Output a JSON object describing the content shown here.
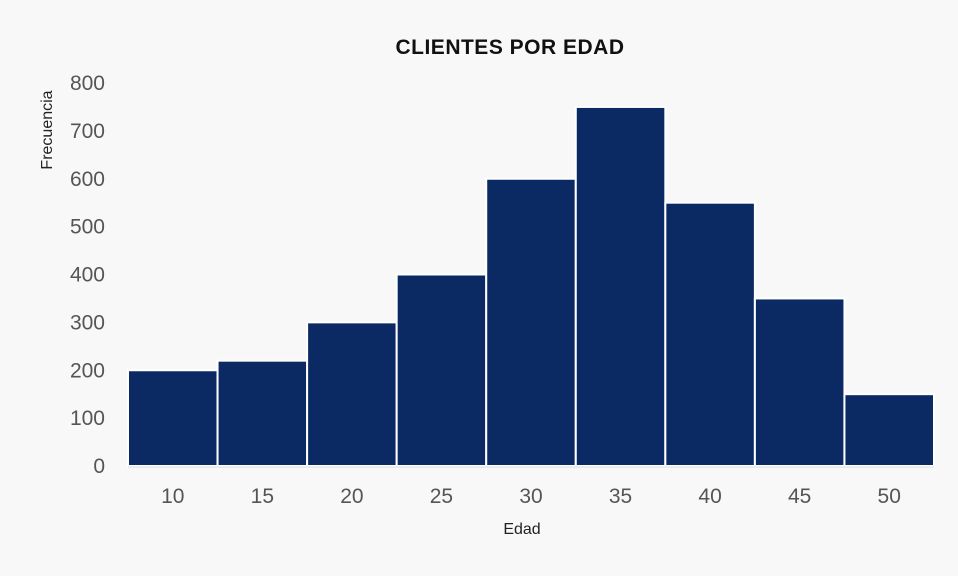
{
  "chart_data": {
    "type": "bar",
    "title": "CLIENTES POR EDAD",
    "xlabel": "Edad",
    "ylabel": "Frecuencia",
    "categories": [
      "10",
      "15",
      "20",
      "25",
      "30",
      "35",
      "40",
      "45",
      "50"
    ],
    "values": [
      200,
      220,
      300,
      400,
      600,
      750,
      550,
      350,
      150
    ],
    "ylim": [
      0,
      800
    ],
    "yticks": [
      "0",
      "100",
      "200",
      "300",
      "400",
      "500",
      "600",
      "700",
      "800"
    ],
    "grid": false,
    "legend": "none",
    "bar_color": "#0b2a63",
    "bar_edge_color": "#ffffff",
    "background_color": "#f8f8f8"
  }
}
